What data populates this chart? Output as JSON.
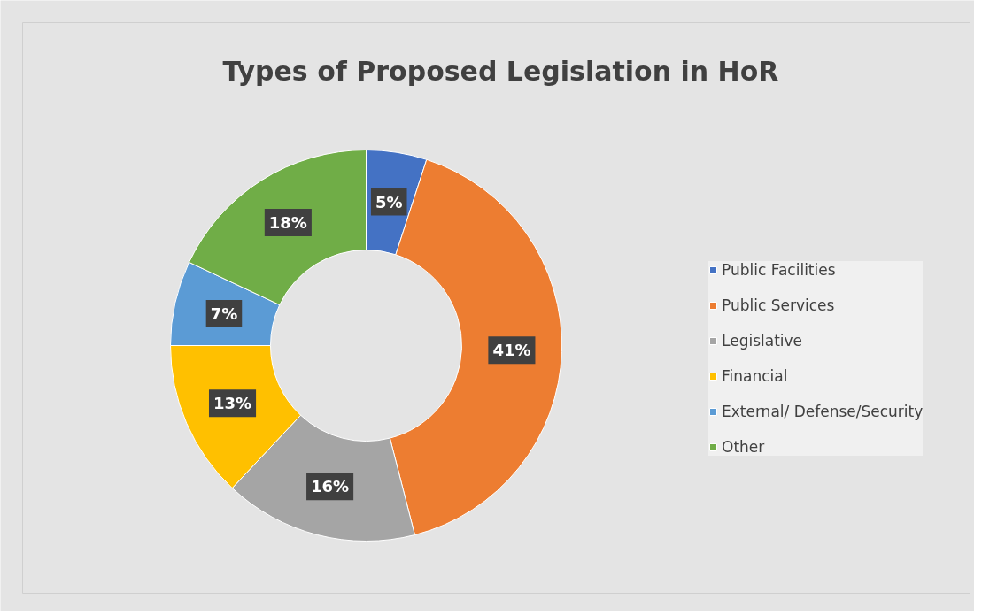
{
  "chart_data": {
    "type": "donut",
    "title": "Types of Proposed Legislation in HoR",
    "categories": [
      "Public Facilities",
      "Public Services",
      "Legislative",
      "Financial",
      "External/ Defense/Security",
      "Other"
    ],
    "values": [
      5,
      41,
      16,
      13,
      7,
      18
    ],
    "colors": [
      "#4472c4",
      "#ed7d31",
      "#a5a5a5",
      "#ffc000",
      "#5b9bd5",
      "#70ad47"
    ],
    "value_labels": [
      "5%",
      "41%",
      "16%",
      "13%",
      "7%",
      "18%"
    ],
    "legend": "right"
  }
}
